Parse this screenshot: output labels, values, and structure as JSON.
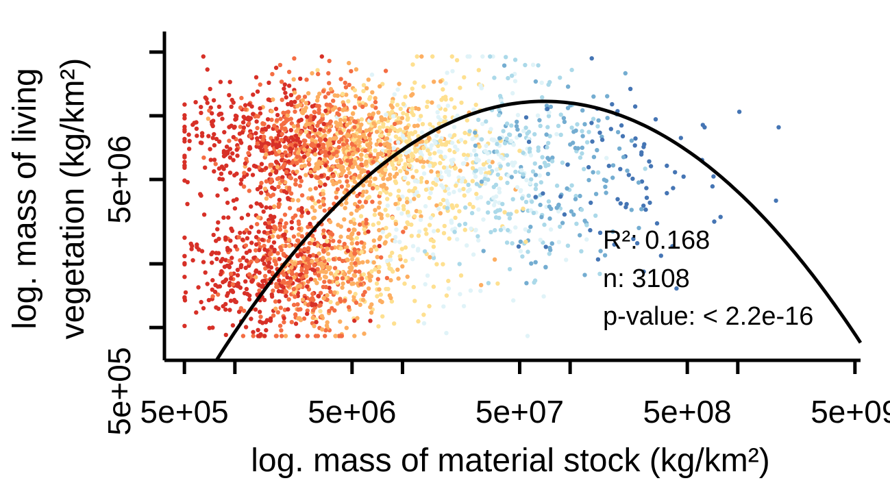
{
  "chart_data": {
    "type": "scatter",
    "title": "",
    "xlabel": "log. mass of material stock (kg/km²)",
    "ylabel_lines": [
      "log. mass of living",
      "vegetation (kg/km²)"
    ],
    "x_scale": "log10",
    "y_scale": "log10",
    "xlim": [
      380000,
      5400000000
    ],
    "ylim": [
      700000,
      25000000
    ],
    "x_ticks": [
      500000,
      1000000,
      5000000,
      10000000,
      50000000,
      100000000,
      500000000,
      1000000000,
      5000000000
    ],
    "x_tick_labels": [
      "5e+05",
      "5e+06",
      "5e+07",
      "5e+08",
      "5e+09"
    ],
    "x_tick_label_values": [
      500000,
      5000000,
      50000000,
      500000000,
      5000000000
    ],
    "y_ticks": [
      1000000,
      2000000,
      5000000,
      10000000,
      20000000
    ],
    "y_tick_labels": [
      "5e+05",
      "5e+06"
    ],
    "y_tick_label_values": [
      500000,
      5000000
    ],
    "point_colors_by_stock": [
      "#d73027",
      "#f46d43",
      "#fdae61",
      "#fee090",
      "#e0f3f8",
      "#abd9e9",
      "#74add1",
      "#4575b4"
    ],
    "n_points": 3108,
    "fit_line": {
      "type": "quadratic in log10 space",
      "peak_x": 70000000,
      "peak_y": 11700000,
      "curvature": 0.32
    },
    "annotations": {
      "r2": "R²: 0.168",
      "n": "n: 3108",
      "p_value": "p-value: < 2.2e-16"
    },
    "grid": false,
    "legend": "none"
  }
}
